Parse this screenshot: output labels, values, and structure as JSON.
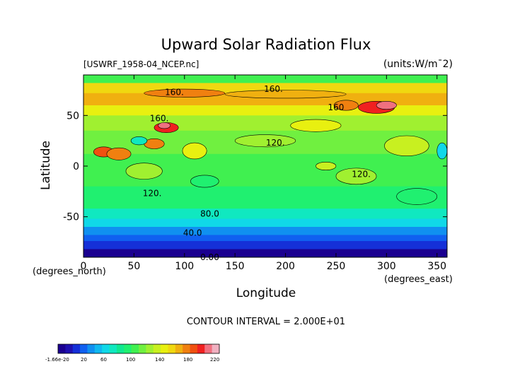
{
  "chart_data": {
    "type": "heatmap",
    "title": "Upward Solar Radiation Flux",
    "file_label": "[USWRF_1958-04_NCEP.nc]",
    "units_label": "(units:W/m¯2)",
    "xlabel": "Longitude",
    "ylabel": "Latitude",
    "x_unit_label": "(degrees_east)",
    "y_unit_label": "(degrees_north)",
    "xlim": [
      0,
      360
    ],
    "ylim": [
      -90,
      90
    ],
    "x_ticks": [
      0,
      50,
      100,
      150,
      200,
      250,
      300,
      350
    ],
    "y_ticks": [
      -50,
      0,
      50
    ],
    "contour_interval_text": "CONTOUR INTERVAL = 2.000E+01",
    "contour_labels": [
      {
        "text": "160.",
        "lon": 90,
        "lat": 73
      },
      {
        "text": "160.",
        "lon": 188,
        "lat": 76
      },
      {
        "text": "160.",
        "lon": 75,
        "lat": 47
      },
      {
        "text": "160",
        "lon": 250,
        "lat": 58
      },
      {
        "text": "120.",
        "lon": 190,
        "lat": 23
      },
      {
        "text": "120.",
        "lon": 275,
        "lat": -8
      },
      {
        "text": "120.",
        "lon": 68,
        "lat": -27
      },
      {
        "text": "80.0",
        "lon": 125,
        "lat": -47
      },
      {
        "text": "40.0",
        "lon": 108,
        "lat": -66
      },
      {
        "text": "0.00",
        "lon": 125,
        "lat": -90
      }
    ],
    "colorbar": {
      "tick_labels": [
        "-1.66e-20",
        "20",
        "60",
        "100",
        "140",
        "180",
        "220"
      ],
      "colors": [
        "#1a0090",
        "#1e10b0",
        "#1530d8",
        "#1060f0",
        "#1090f0",
        "#10b8f0",
        "#10d8e8",
        "#10e8c0",
        "#10e890",
        "#20f070",
        "#40f050",
        "#70f040",
        "#a0f030",
        "#c8f020",
        "#e8f010",
        "#f0d810",
        "#f0b010",
        "#f08010",
        "#f05010",
        "#f02020",
        "#f07080",
        "#f0b0c0"
      ]
    }
  }
}
